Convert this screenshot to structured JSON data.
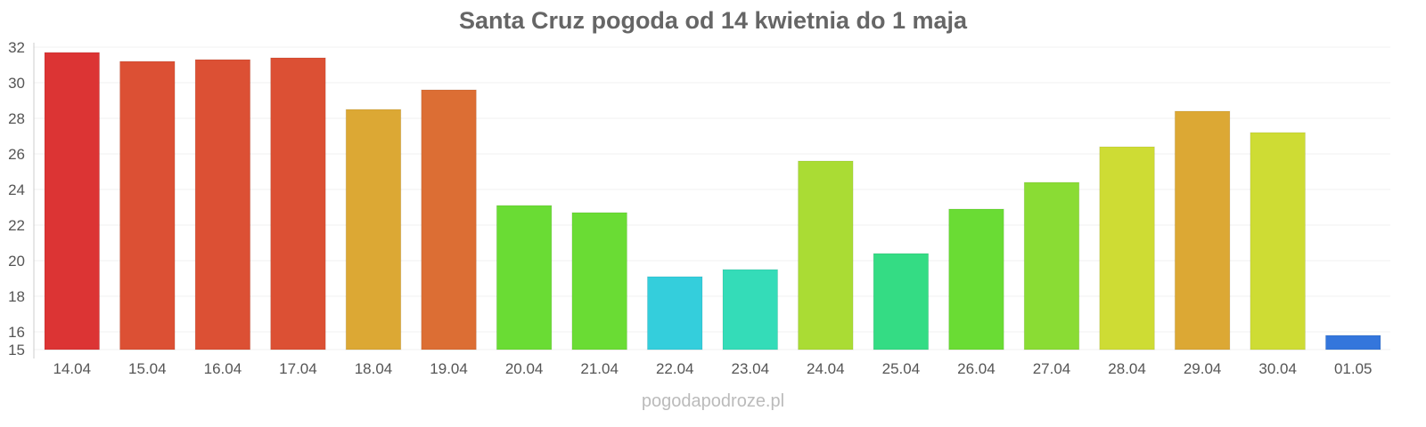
{
  "chart_data": {
    "type": "bar",
    "title": "Santa Cruz pogoda od 14 kwietnia do 1 maja",
    "categories": [
      "14.04",
      "15.04",
      "16.04",
      "17.04",
      "18.04",
      "19.04",
      "20.04",
      "21.04",
      "22.04",
      "23.04",
      "24.04",
      "25.04",
      "26.04",
      "27.04",
      "28.04",
      "29.04",
      "30.04",
      "01.05"
    ],
    "values": [
      31.7,
      31.2,
      31.3,
      31.4,
      28.5,
      29.6,
      23.1,
      22.7,
      19.1,
      19.5,
      25.6,
      20.4,
      22.9,
      24.4,
      26.4,
      28.4,
      27.2,
      15.8
    ],
    "colors": [
      "#dc3434",
      "#dc5034",
      "#dc5034",
      "#dc5034",
      "#dca834",
      "#dc6e34",
      "#6adc34",
      "#6adc34",
      "#34cedc",
      "#34dcb8",
      "#aadc34",
      "#34dc84",
      "#6adc34",
      "#8adc34",
      "#cedc34",
      "#dca834",
      "#cedc34",
      "#3476dc"
    ],
    "ylim": [
      15,
      32
    ],
    "yticks": [
      15,
      16,
      18,
      20,
      22,
      24,
      26,
      28,
      30,
      32
    ],
    "grid": true,
    "xlabel": "",
    "ylabel": ""
  },
  "footer": "pogodapodroze.pl"
}
